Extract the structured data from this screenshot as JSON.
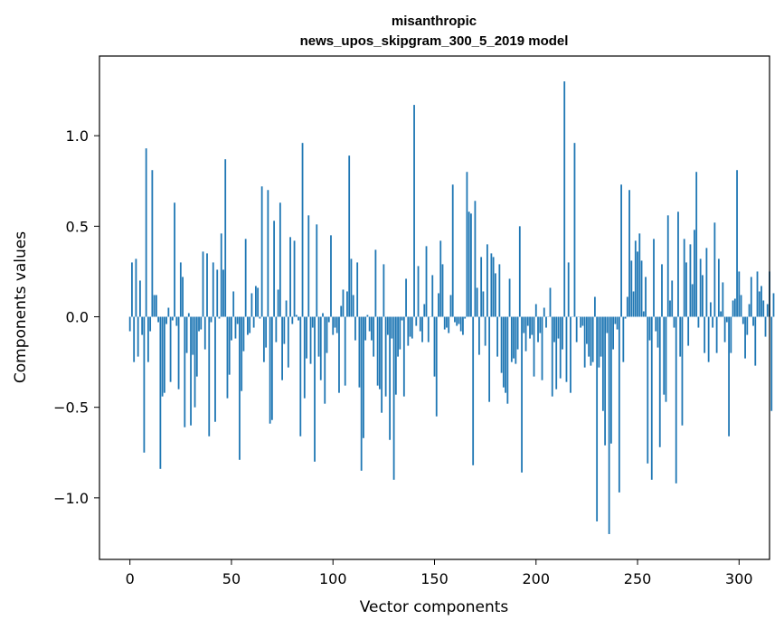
{
  "chart_data": {
    "type": "bar",
    "title": [
      "misanthropic",
      "news_upos_skipgram_300_5_2019 model"
    ],
    "xlabel": "Vector components",
    "ylabel": "Components values",
    "xlim": [
      -15,
      315
    ],
    "ylim": [
      -1.34,
      1.44
    ],
    "xticks": [
      0,
      50,
      100,
      150,
      200,
      250,
      300
    ],
    "yticks": [
      -1.0,
      -0.5,
      0.0,
      0.5,
      1.0
    ],
    "ytick_labels": [
      "−1.0",
      "−0.5",
      "0.0",
      "0.5",
      "1.0"
    ],
    "grid": false,
    "color": "#1f77b4",
    "bar_width": 0.8,
    "values": [
      -0.08,
      0.3,
      -0.25,
      0.32,
      -0.22,
      0.2,
      -0.1,
      -0.75,
      0.93,
      -0.25,
      -0.08,
      0.81,
      0.12,
      0.12,
      -0.03,
      -0.84,
      -0.44,
      -0.42,
      -0.04,
      0.05,
      -0.36,
      -0.02,
      0.63,
      -0.05,
      -0.4,
      0.3,
      0.22,
      -0.61,
      -0.2,
      0.02,
      -0.6,
      -0.21,
      -0.5,
      -0.33,
      -0.08,
      -0.07,
      0.36,
      -0.18,
      0.35,
      -0.66,
      -0.03,
      0.3,
      -0.58,
      0.26,
      -0.01,
      0.46,
      0.26,
      0.87,
      -0.45,
      -0.32,
      -0.13,
      0.14,
      -0.12,
      -0.04,
      -0.79,
      -0.41,
      -0.19,
      0.43,
      -0.1,
      -0.09,
      0.13,
      -0.06,
      0.17,
      0.16,
      -0.01,
      0.72,
      -0.25,
      -0.17,
      0.7,
      -0.59,
      -0.57,
      0.53,
      -0.14,
      0.15,
      0.63,
      -0.35,
      -0.15,
      0.09,
      -0.28,
      0.44,
      -0.04,
      0.42,
      0.01,
      -0.02,
      -0.66,
      0.96,
      -0.45,
      -0.23,
      0.56,
      -0.26,
      -0.06,
      -0.8,
      0.51,
      -0.22,
      -0.35,
      0.02,
      -0.48,
      -0.2,
      -0.03,
      0.45,
      -0.1,
      -0.06,
      -0.09,
      -0.42,
      0.06,
      0.15,
      -0.38,
      0.14,
      0.89,
      0.32,
      0.12,
      -0.13,
      0.3,
      -0.39,
      -0.85,
      -0.67,
      -0.13,
      0.01,
      -0.08,
      -0.13,
      -0.22,
      0.37,
      -0.38,
      -0.4,
      -0.53,
      0.29,
      -0.44,
      -0.1,
      -0.68,
      -0.12,
      -0.9,
      -0.43,
      -0.22,
      -0.18,
      -0.02,
      -0.44,
      0.21,
      -0.16,
      -0.11,
      -0.12,
      1.17,
      -0.05,
      0.28,
      -0.08,
      -0.14,
      0.07,
      0.39,
      -0.14,
      0.0,
      0.23,
      -0.33,
      -0.55,
      0.13,
      0.42,
      0.29,
      -0.07,
      -0.06,
      -0.09,
      0.12,
      0.73,
      -0.03,
      -0.05,
      -0.04,
      -0.08,
      -0.1,
      -0.01,
      0.8,
      0.58,
      0.57,
      -0.82,
      0.64,
      0.16,
      -0.21,
      0.33,
      0.14,
      -0.16,
      0.4,
      -0.47,
      0.35,
      0.33,
      0.24,
      -0.22,
      0.29,
      -0.31,
      -0.39,
      -0.42,
      -0.48,
      0.21,
      -0.25,
      -0.23,
      -0.26,
      -0.18,
      0.5,
      -0.86,
      -0.09,
      -0.19,
      -0.05,
      -0.12,
      -0.1,
      -0.33,
      0.07,
      -0.14,
      -0.09,
      -0.35,
      0.05,
      -0.06,
      0.0,
      0.16,
      -0.44,
      -0.14,
      -0.4,
      -0.12,
      -0.34,
      -0.18,
      1.3,
      -0.36,
      0.3,
      -0.42,
      0.0,
      0.96,
      -0.14,
      0.0,
      -0.06,
      -0.05,
      -0.28,
      -0.15,
      -0.22,
      -0.27,
      -0.25,
      0.11,
      -1.13,
      -0.28,
      -0.22,
      -0.52,
      -0.71,
      -0.09,
      -1.2,
      -0.7,
      -0.18,
      -0.04,
      -0.07,
      -0.97,
      0.73,
      -0.25,
      -0.01,
      0.11,
      0.7,
      0.31,
      0.14,
      0.42,
      0.36,
      0.46,
      0.31,
      0.03,
      0.22,
      -0.81,
      -0.13,
      -0.9,
      0.43,
      -0.08,
      -0.17,
      -0.72,
      0.29,
      -0.43,
      -0.47,
      0.56,
      0.09,
      0.2,
      -0.06,
      -0.92,
      0.58,
      -0.22,
      -0.6,
      0.43,
      0.3,
      -0.16,
      0.4,
      0.18,
      0.48,
      0.8,
      -0.06,
      0.32,
      0.23,
      -0.2,
      0.38,
      -0.25,
      0.08,
      -0.06,
      0.52,
      -0.2,
      0.32,
      0.03,
      0.19,
      -0.14,
      -0.03,
      -0.66,
      -0.2,
      0.09,
      0.1,
      0.81,
      0.25,
      0.12,
      -0.04,
      -0.23,
      -0.1,
      0.07,
      0.22,
      -0.05,
      -0.27,
      0.25,
      0.14,
      0.17,
      0.09,
      -0.11,
      0.07,
      0.25,
      -0.52,
      0.13
    ]
  }
}
